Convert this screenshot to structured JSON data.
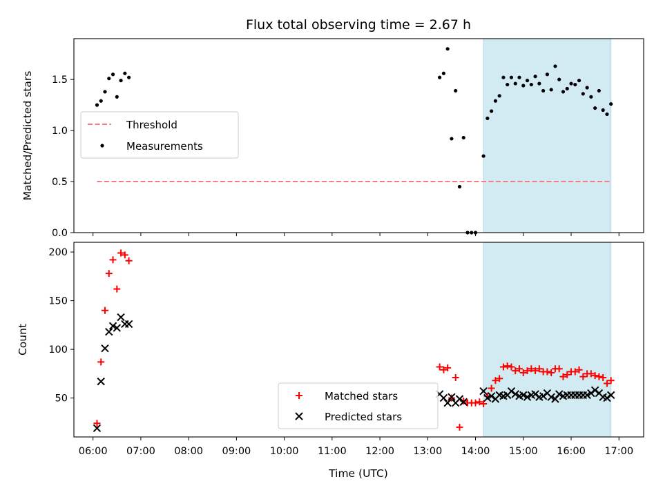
{
  "figure": {
    "title": "Flux total observing time = 2.67 h",
    "xlabel": "Time (UTC)"
  },
  "chart_data": [
    {
      "type": "scatter",
      "ylabel": "Matched/Predicted stars",
      "xlim": [
        "05:36",
        "17:31"
      ],
      "ylim": [
        0.0,
        1.9
      ],
      "xticks": [
        "06:00",
        "07:00",
        "08:00",
        "09:00",
        "10:00",
        "11:00",
        "12:00",
        "13:00",
        "14:00",
        "15:00",
        "16:00",
        "17:00"
      ],
      "yticks": [
        "0.0",
        "0.5",
        "1.0",
        "1.5"
      ],
      "shaded_span": [
        "14:10",
        "16:50"
      ],
      "threshold": {
        "name": "Threshold",
        "value": 0.5,
        "x_range": [
          "06:05",
          "16:50"
        ],
        "color": "#f77b7b"
      },
      "legend": {
        "placement": "center-left"
      },
      "series": [
        {
          "name": "Measurements",
          "marker": "dot",
          "color": "#000000",
          "x": [
            "06:05",
            "06:10",
            "06:15",
            "06:20",
            "06:25",
            "06:30",
            "06:35",
            "06:40",
            "06:45",
            "13:15",
            "13:20",
            "13:25",
            "13:30",
            "13:35",
            "13:40",
            "13:45",
            "13:50",
            "13:55",
            "14:00",
            "14:10",
            "14:15",
            "14:20",
            "14:25",
            "14:30",
            "14:35",
            "14:40",
            "14:45",
            "14:50",
            "14:55",
            "15:00",
            "15:05",
            "15:10",
            "15:15",
            "15:20",
            "15:25",
            "15:30",
            "15:35",
            "15:40",
            "15:45",
            "15:50",
            "15:55",
            "16:00",
            "16:05",
            "16:10",
            "16:15",
            "16:20",
            "16:25",
            "16:30",
            "16:35",
            "16:40",
            "16:45",
            "16:50"
          ],
          "y": [
            1.25,
            1.29,
            1.38,
            1.51,
            1.55,
            1.33,
            1.49,
            1.56,
            1.52,
            1.52,
            1.56,
            1.8,
            0.92,
            1.39,
            0.45,
            0.93,
            0.0,
            0.0,
            0.0,
            0.75,
            1.12,
            1.19,
            1.29,
            1.34,
            1.52,
            1.45,
            1.52,
            1.46,
            1.52,
            1.44,
            1.49,
            1.45,
            1.53,
            1.46,
            1.39,
            1.55,
            1.4,
            1.63,
            1.5,
            1.38,
            1.41,
            1.46,
            1.45,
            1.49,
            1.36,
            1.42,
            1.33,
            1.22,
            1.39,
            1.2,
            1.16,
            1.26
          ]
        }
      ]
    },
    {
      "type": "scatter",
      "ylabel": "Count",
      "xlim": [
        "05:36",
        "17:31"
      ],
      "ylim": [
        10,
        210
      ],
      "xticks": [
        "06:00",
        "07:00",
        "08:00",
        "09:00",
        "10:00",
        "11:00",
        "12:00",
        "13:00",
        "14:00",
        "15:00",
        "16:00",
        "17:00"
      ],
      "yticks": [
        "50",
        "100",
        "150",
        "200"
      ],
      "shaded_span": [
        "14:10",
        "16:50"
      ],
      "legend": {
        "placement": "lower-center"
      },
      "series": [
        {
          "name": "Matched stars",
          "marker": "plus",
          "color": "#ff0000",
          "x": [
            "06:05",
            "06:10",
            "06:15",
            "06:20",
            "06:25",
            "06:30",
            "06:35",
            "06:40",
            "06:45",
            "13:15",
            "13:20",
            "13:25",
            "13:30",
            "13:35",
            "13:40",
            "13:45",
            "13:50",
            "13:55",
            "14:00",
            "14:05",
            "14:10",
            "14:15",
            "14:20",
            "14:25",
            "14:30",
            "14:35",
            "14:40",
            "14:45",
            "14:50",
            "14:55",
            "15:00",
            "15:05",
            "15:10",
            "15:15",
            "15:20",
            "15:25",
            "15:30",
            "15:35",
            "15:40",
            "15:45",
            "15:50",
            "15:55",
            "16:00",
            "16:05",
            "16:10",
            "16:15",
            "16:20",
            "16:25",
            "16:30",
            "16:35",
            "16:40",
            "16:45",
            "16:50"
          ],
          "y": [
            24,
            87,
            140,
            178,
            192,
            162,
            199,
            197,
            191,
            82,
            79,
            81,
            50,
            71,
            20,
            47,
            45,
            45,
            45,
            46,
            44,
            52,
            60,
            68,
            70,
            82,
            83,
            82,
            78,
            80,
            76,
            78,
            80,
            78,
            80,
            77,
            77,
            76,
            80,
            80,
            72,
            74,
            77,
            77,
            79,
            72,
            75,
            75,
            73,
            72,
            71,
            65,
            68
          ]
        },
        {
          "name": "Predicted stars",
          "marker": "x",
          "color": "#000000",
          "x": [
            "06:05",
            "06:10",
            "06:15",
            "06:20",
            "06:25",
            "06:30",
            "06:35",
            "06:40",
            "06:45",
            "13:15",
            "13:20",
            "13:25",
            "13:30",
            "13:35",
            "13:40",
            "13:45",
            "14:10",
            "14:15",
            "14:20",
            "14:25",
            "14:30",
            "14:35",
            "14:40",
            "14:45",
            "14:50",
            "14:55",
            "15:00",
            "15:05",
            "15:10",
            "15:15",
            "15:20",
            "15:25",
            "15:30",
            "15:35",
            "15:40",
            "15:45",
            "15:50",
            "15:55",
            "16:00",
            "16:05",
            "16:10",
            "16:15",
            "16:20",
            "16:25",
            "16:30",
            "16:35",
            "16:40",
            "16:45",
            "16:50"
          ],
          "y": [
            19,
            67,
            101,
            118,
            124,
            122,
            133,
            126,
            126,
            54,
            50,
            45,
            51,
            45,
            49,
            46,
            57,
            50,
            52,
            49,
            53,
            52,
            53,
            57,
            54,
            52,
            53,
            51,
            53,
            54,
            51,
            52,
            55,
            51,
            49,
            54,
            52,
            53,
            53,
            53,
            53,
            53,
            53,
            55,
            58,
            55,
            51,
            50,
            53
          ]
        }
      ]
    }
  ]
}
